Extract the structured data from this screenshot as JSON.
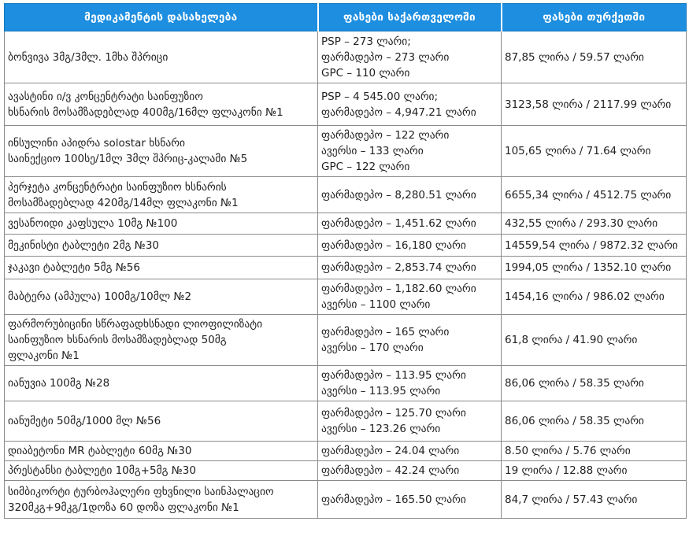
{
  "headers": [
    "მედიკამენტის დასახელება",
    "ფასები საქართველოში",
    "ფასები თურქეთში"
  ],
  "rows": [
    {
      "name": [
        "ბონვივა 3მგ/3მლ. 1მხა შპრიცი"
      ],
      "ge": [
        "PSP – 273 ლარი;",
        "ფარმადეპო – 273 ლარი",
        "GPC – 110 ლარი"
      ],
      "tr": "87,85 ლირა / 59.57 ლარი"
    },
    {
      "name": [
        "ავასტინი ი/ვ კონცენტრატი საინფუზიო",
        "ხსნარის მოსამზადებლად 400მგ/16მლ ფლაკონი №1"
      ],
      "ge": [
        "PSP – 4 545.00 ლარი;",
        "ფარმადეპო – 4,947.21 ლარი"
      ],
      "tr": "3123,58 ლირა / 2117.99 ლარი"
    },
    {
      "name": [
        "ინსულინი აპიდრა solostar ხსნარი",
        "საინექციო 100სე/1მლ 3მლ შპრიც-კალამი №5"
      ],
      "ge": [
        "ფარმადეპო – 122 ლარი",
        "ავერსი – 133 ლარი",
        "GPC – 122 ლარი"
      ],
      "tr": "105,65 ლირა / 71.64 ლარი"
    },
    {
      "name": [
        "პერჯეტა კონცენტრატი საინფუზიო ხსნარის",
        "მოსამზადებლად 420მგ/14მლ ფლაკონი №1"
      ],
      "ge": [
        "ფარმადეპო – 8,280.51 ლარი"
      ],
      "tr": "6655,34 ლირა / 4512.75 ლარი"
    },
    {
      "name": [
        "ვესანოიდი კაფსულა 10მგ №100"
      ],
      "ge": [
        "ფარმადეპო – 1,451.62 ლარი"
      ],
      "tr": "432,55 ლირა / 293.30 ლარი"
    },
    {
      "name": [
        "მეკინისტი ტაბლეტი 2მგ №30"
      ],
      "ge": [
        "ფარმადეპო – 16,180 ლარი"
      ],
      "tr": "14559,54 ლირა / 9872.32 ლარი"
    },
    {
      "name": [
        "ჯაკავი ტაბლეტი 5მგ №56"
      ],
      "ge": [
        "ფარმადეპო – 2,853.74 ლარი"
      ],
      "tr": "1994,05 ლირა / 1352.10 ლარი"
    },
    {
      "name": [
        "მაბტერა (ამპულა) 100მგ/10მლ №2"
      ],
      "ge": [
        "ფარმადეპო – 1,182.60 ლარი",
        "ავერსი – 1100 ლარი"
      ],
      "tr": "1454,16 ლირა / 986.02 ლარი"
    },
    {
      "name": [
        "ფარმორუბიცინი სწრაფადხსნადი ლიოფილიზატი",
        "საინფუზიო ხსნარის მოსამზადებლად 50მგ",
        "ფლაკონი №1"
      ],
      "ge": [
        "ფარმადეპო – 165 ლარი",
        "ავერსი – 170 ლარი"
      ],
      "tr": "61,8 ლირა / 41.90 ლარი"
    },
    {
      "name": [
        "იანუვია 100მგ №28"
      ],
      "ge": [
        "ფარმადეპო – 113.95 ლარი",
        "ავერსი – 113.95 ლარი"
      ],
      "tr": "86,06 ლირა / 58.35 ლარი"
    },
    {
      "name": [
        "იანუმეტი 50მგ/1000 მლ №56"
      ],
      "ge": [
        "ფარმადეპო – 125.70 ლარი",
        "ავერსი – 123.26 ლარი"
      ],
      "tr": "86,06 ლირა / 58.35 ლარი"
    },
    {
      "name": [
        "დიაბეტონი MR ტაბლეტი 60მგ №30"
      ],
      "ge": [
        "ფარმადეპო – 24.04 ლარი"
      ],
      "tr": "8.50 ლირა / 5.76 ლარი"
    },
    {
      "name": [
        "პრესტანსი ტაბლეტი 10მგ+5მგ №30"
      ],
      "ge": [
        "ფარმადეპო – 42.24 ლარი"
      ],
      "tr": "19 ლირა / 12.88 ლარი"
    },
    {
      "name": [
        "სიმბიკორტი ტურბოჰალერი ფხვნილი საინჰალაციო",
        "320მკგ+9მკგ/1დოზა 60 დოზა ფლაკონი №1"
      ],
      "ge": [
        "ფარმადეპო – 165.50 ლარი"
      ],
      "tr": "84,7 ლირა / 57.43 ლარი"
    }
  ]
}
